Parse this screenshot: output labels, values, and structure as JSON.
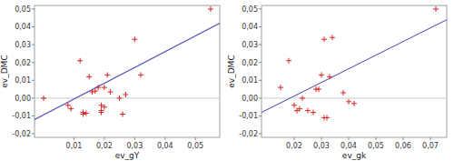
{
  "chart_data": [
    {
      "type": "scatter",
      "xlabel": "ev_gY",
      "ylabel": "ev_DMC",
      "xlim": [
        -0.003,
        0.058
      ],
      "ylim": [
        -0.022,
        0.052
      ],
      "xticks": [
        {
          "value": 0.01,
          "label": "0,01"
        },
        {
          "value": 0.02,
          "label": "0,02"
        },
        {
          "value": 0.03,
          "label": "0,03"
        },
        {
          "value": 0.04,
          "label": "0,04"
        },
        {
          "value": 0.05,
          "label": "0,05"
        }
      ],
      "yticks": [
        {
          "value": -0.02,
          "label": "-0,02"
        },
        {
          "value": -0.01,
          "label": "-0,01"
        },
        {
          "value": 0.0,
          "label": "0,00"
        },
        {
          "value": 0.01,
          "label": "0,01"
        },
        {
          "value": 0.02,
          "label": "0,02"
        },
        {
          "value": 0.03,
          "label": "0,03"
        },
        {
          "value": 0.04,
          "label": "0,04"
        },
        {
          "value": 0.05,
          "label": "0,05"
        }
      ],
      "grid": false,
      "series": [
        {
          "type": "scatter",
          "marker": "+",
          "color": "#dd2222",
          "x": [
            0.0,
            0.008,
            0.009,
            0.012,
            0.013,
            0.013,
            0.014,
            0.015,
            0.016,
            0.017,
            0.018,
            0.019,
            0.019,
            0.019,
            0.02,
            0.02,
            0.021,
            0.022,
            0.025,
            0.026,
            0.027,
            0.03,
            0.032,
            0.055
          ],
          "values": [
            0.0,
            -0.004,
            -0.006,
            0.021,
            -0.009,
            -0.008,
            -0.0085,
            0.012,
            0.0035,
            0.004,
            0.006,
            -0.008,
            -0.004,
            -0.007,
            -0.005,
            0.006,
            0.013,
            0.0035,
            0.0,
            -0.009,
            0.002,
            0.033,
            0.013,
            0.05
          ]
        },
        {
          "type": "line",
          "color": "#5555bb",
          "x": [
            -0.003,
            0.058
          ],
          "values": [
            -0.012,
            0.042
          ]
        },
        {
          "type": "hline",
          "color": "#cccccc",
          "values": [
            0.0
          ]
        }
      ]
    },
    {
      "type": "scatter",
      "xlabel": "ev_gk",
      "ylabel": "ev_DMC",
      "xlim": [
        0.008,
        0.076
      ],
      "ylim": [
        -0.022,
        0.052
      ],
      "xticks": [
        {
          "value": 0.02,
          "label": "0,02"
        },
        {
          "value": 0.03,
          "label": "0,03"
        },
        {
          "value": 0.04,
          "label": "0,04"
        },
        {
          "value": 0.05,
          "label": "0,05"
        },
        {
          "value": 0.06,
          "label": "0,06"
        },
        {
          "value": 0.07,
          "label": "0,07"
        }
      ],
      "yticks": [
        {
          "value": -0.02,
          "label": "-0,02"
        },
        {
          "value": -0.01,
          "label": "-0,01"
        },
        {
          "value": 0.0,
          "label": "0,00"
        },
        {
          "value": 0.01,
          "label": "0,01"
        },
        {
          "value": 0.02,
          "label": "0,02"
        },
        {
          "value": 0.03,
          "label": "0,03"
        },
        {
          "value": 0.04,
          "label": "0,04"
        },
        {
          "value": 0.05,
          "label": "0,05"
        }
      ],
      "grid": false,
      "series": [
        {
          "type": "scatter",
          "marker": "+",
          "color": "#dd2222",
          "x": [
            0.015,
            0.018,
            0.02,
            0.021,
            0.022,
            0.023,
            0.025,
            0.027,
            0.028,
            0.029,
            0.03,
            0.031,
            0.031,
            0.032,
            0.033,
            0.034,
            0.038,
            0.04,
            0.042,
            0.072
          ],
          "values": [
            0.006,
            0.021,
            -0.004,
            -0.007,
            -0.006,
            0.0,
            -0.007,
            -0.008,
            0.005,
            0.005,
            0.013,
            0.033,
            -0.011,
            -0.011,
            0.012,
            0.034,
            0.003,
            -0.002,
            -0.003,
            0.05
          ]
        },
        {
          "type": "line",
          "color": "#5555bb",
          "x": [
            0.008,
            0.076
          ],
          "values": [
            -0.008,
            0.044
          ]
        },
        {
          "type": "hline",
          "color": "#cccccc",
          "values": [
            0.0
          ]
        }
      ]
    }
  ]
}
